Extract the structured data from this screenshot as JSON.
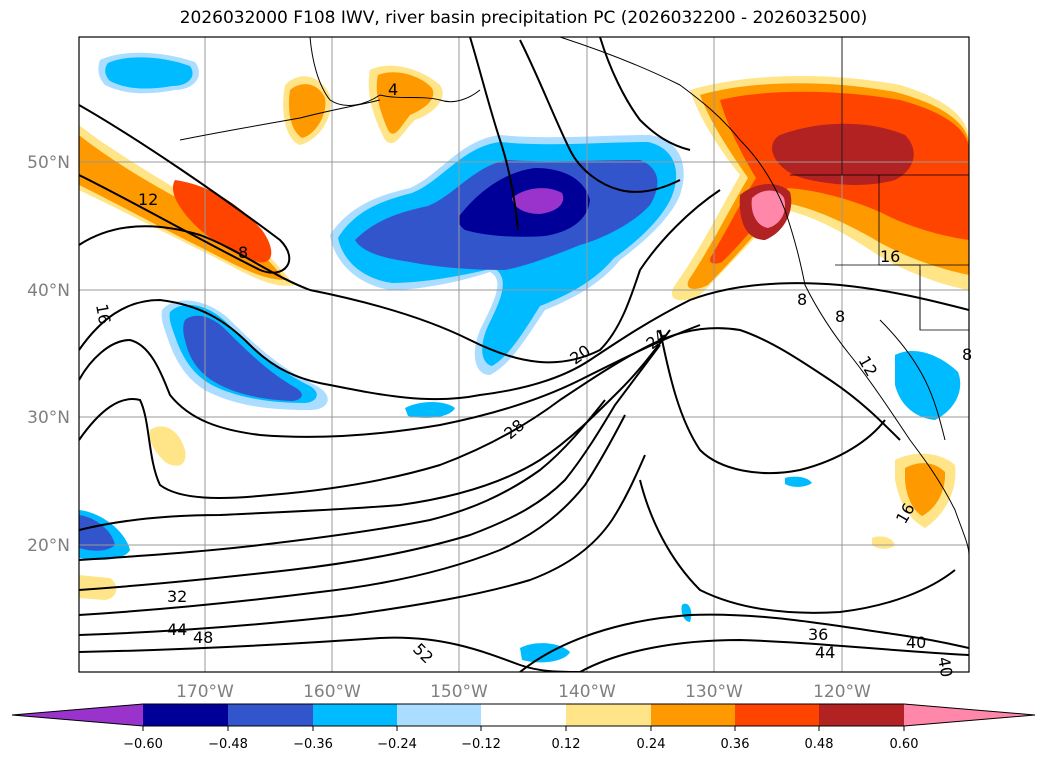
{
  "title": "2026032000 F108 IWV, river basin precipitation PC (2026032200 - 2026032500)",
  "map": {
    "lat_labels": [
      "50°N",
      "40°N",
      "30°N",
      "20°N"
    ],
    "lon_labels": [
      "170°W",
      "160°W",
      "150°W",
      "140°W",
      "130°W",
      "120°W"
    ],
    "contour_labels": [
      "12",
      "8",
      "16",
      "20",
      "24",
      "28",
      "32",
      "44",
      "48",
      "52",
      "36",
      "44",
      "40",
      "40",
      "4",
      "16",
      "8",
      "8",
      "12",
      "8",
      "16"
    ]
  },
  "colorbar": {
    "ticks": [
      "−0.60",
      "−0.48",
      "−0.36",
      "−0.24",
      "−0.12",
      "0.12",
      "0.24",
      "0.36",
      "0.48",
      "0.60"
    ],
    "colors": [
      "#9933cc",
      "#000099",
      "#3355cc",
      "#00bbff",
      "#aaddff",
      "#ffffff",
      "#ffe588",
      "#ff9900",
      "#ff4400",
      "#b22222",
      "#ff88aa"
    ]
  }
}
